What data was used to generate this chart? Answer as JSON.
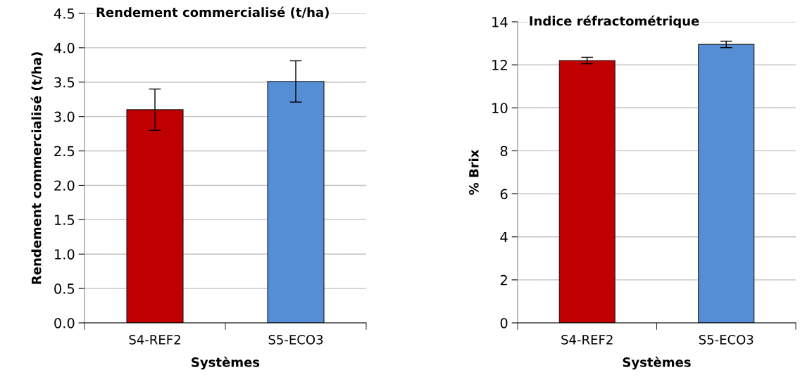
{
  "chart_data": [
    {
      "type": "bar",
      "title": "Rendement commercialisé (t/ha)",
      "xlabel": "Systèmes",
      "ylabel": "Rendement commercialisé (t/ha)",
      "categories": [
        "S4-REF2",
        "S5-ECO3"
      ],
      "values": [
        3.1,
        3.51
      ],
      "colors": [
        "#c00000",
        "#558ed5"
      ],
      "errors": [
        0.3,
        0.3
      ],
      "ylim": [
        0,
        4.5
      ],
      "yticks": [
        {
          "value": 0,
          "label": "0.0"
        },
        0.5,
        {
          "value": 1,
          "label": "1.0"
        },
        1.5,
        {
          "value": 2,
          "label": "2.0"
        },
        2.5,
        {
          "value": 3,
          "label": "3.0"
        },
        3.5,
        {
          "value": 4,
          "label": "4.0"
        },
        4.5
      ],
      "grid": "y",
      "legend": false
    },
    {
      "type": "bar",
      "title": "Indice réfractométrique",
      "xlabel": "Systèmes",
      "ylabel": "% Brix",
      "categories": [
        "S4-REF2",
        "S5-ECO3"
      ],
      "values": [
        12.2,
        12.95
      ],
      "colors": [
        "#c00000",
        "#558ed5"
      ],
      "errors": [
        0.15,
        0.15
      ],
      "ylim": [
        0,
        14
      ],
      "yticks": [
        0,
        2,
        4,
        6,
        8,
        10,
        12,
        14
      ],
      "grid": "y",
      "legend": false
    }
  ]
}
